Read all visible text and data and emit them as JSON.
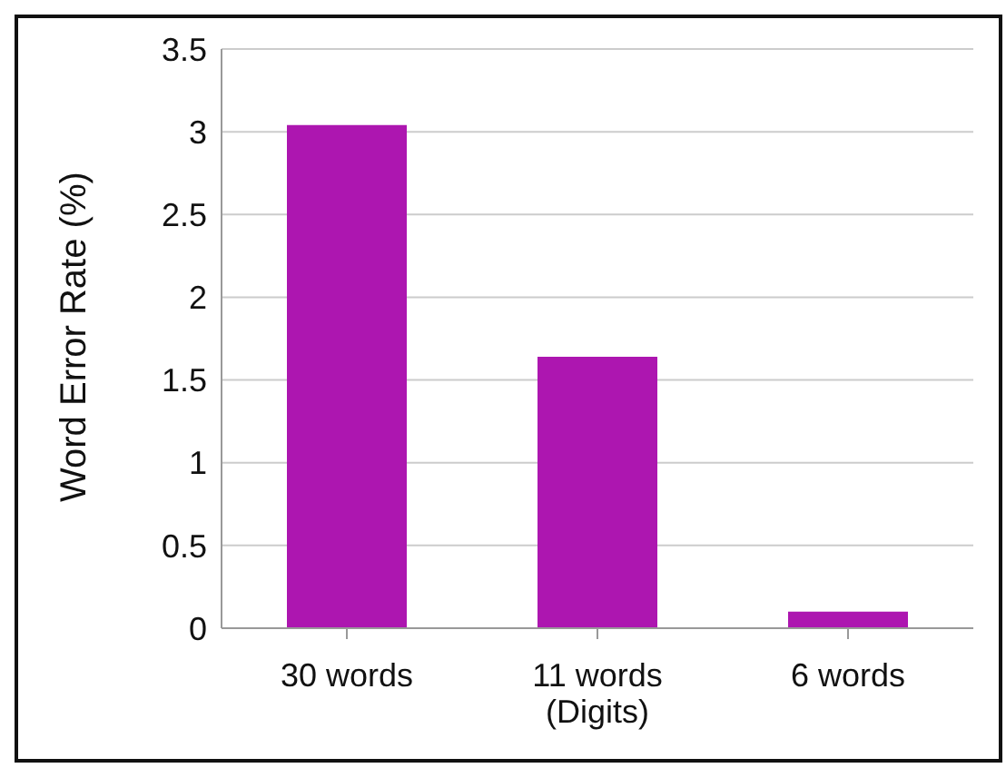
{
  "chart_data": {
    "type": "bar",
    "ylabel": "Word Error Rate (%)",
    "categories": [
      "30 words",
      "11 words\n(Digits)",
      "6 words"
    ],
    "values": [
      3.04,
      1.64,
      0.1
    ],
    "color": "#ad16b0",
    "ylim": [
      0,
      3.5
    ],
    "yticks": [
      0,
      0.5,
      1,
      1.5,
      2,
      2.5,
      3,
      3.5
    ],
    "grid": "y",
    "legend": false
  }
}
